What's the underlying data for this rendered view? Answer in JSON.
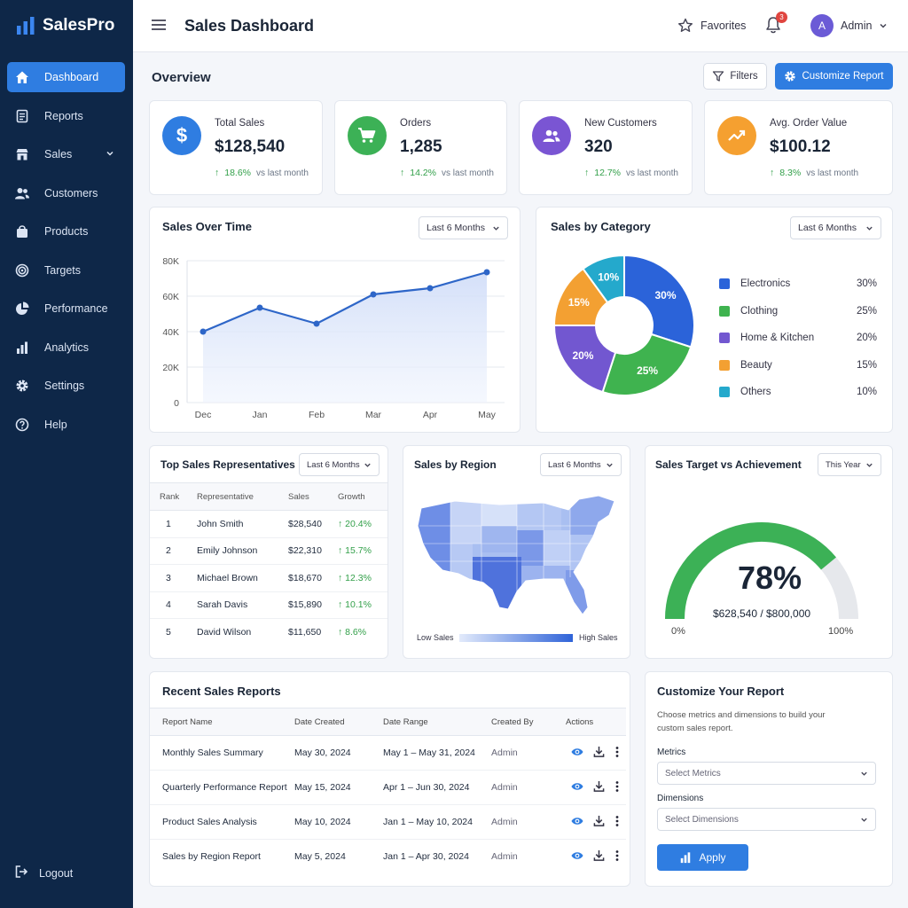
{
  "app": {
    "name": "SalesPro"
  },
  "sidebar": {
    "items": [
      {
        "label": "Dashboard",
        "icon": "home-icon"
      },
      {
        "label": "Reports",
        "icon": "report-icon"
      },
      {
        "label": "Sales",
        "icon": "store-icon"
      },
      {
        "label": "Customers",
        "icon": "users-icon"
      },
      {
        "label": "Products",
        "icon": "bag-icon"
      },
      {
        "label": "Targets",
        "icon": "target-icon"
      },
      {
        "label": "Performance",
        "icon": "pie-icon"
      },
      {
        "label": "Analytics",
        "icon": "bar-chart-icon"
      },
      {
        "label": "Settings",
        "icon": "gear-icon"
      },
      {
        "label": "Help",
        "icon": "help-icon"
      }
    ],
    "logout": "Logout"
  },
  "header": {
    "title": "Sales Dashboard",
    "favorites": "Favorites",
    "notification_count": "3",
    "user_initial": "A",
    "user_name": "Admin"
  },
  "overview": {
    "title": "Overview",
    "filters_label": "Filters",
    "customize_label": "Customize Report"
  },
  "kpis": [
    {
      "label": "Total Sales",
      "value": "$128,540",
      "change": "18.6%",
      "vs": "vs last month",
      "color": "#2f7de1"
    },
    {
      "label": "Orders",
      "value": "1,285",
      "change": "14.2%",
      "vs": "vs last month",
      "color": "#3cb156"
    },
    {
      "label": "New Customers",
      "value": "320",
      "change": "12.7%",
      "vs": "vs last month",
      "color": "#7a55d3"
    },
    {
      "label": "Avg. Order Value",
      "value": "$100.12",
      "change": "8.3%",
      "vs": "vs last month",
      "color": "#f5a030"
    }
  ],
  "sales_over_time": {
    "title": "Sales Over Time",
    "range": "Last 6 Months"
  },
  "sales_by_category": {
    "title": "Sales by Category",
    "range": "Last 6 Months"
  },
  "top_reps": {
    "title": "Top Sales Representatives",
    "range": "Last 6 Months",
    "columns": [
      "Rank",
      "Representative",
      "Sales",
      "Growth"
    ],
    "rows": [
      {
        "rank": "1",
        "name": "John Smith",
        "sales": "$28,540",
        "growth": "20.4%"
      },
      {
        "rank": "2",
        "name": "Emily Johnson",
        "sales": "$22,310",
        "growth": "15.7%"
      },
      {
        "rank": "3",
        "name": "Michael Brown",
        "sales": "$18,670",
        "growth": "12.3%"
      },
      {
        "rank": "4",
        "name": "Sarah Davis",
        "sales": "$15,890",
        "growth": "10.1%"
      },
      {
        "rank": "5",
        "name": "David Wilson",
        "sales": "$11,650",
        "growth": "8.6%"
      }
    ]
  },
  "sales_by_region": {
    "title": "Sales by Region",
    "range": "Last 6 Months",
    "low_label": "Low Sales",
    "high_label": "High Sales"
  },
  "target": {
    "title": "Sales Target vs Achievement",
    "range": "This Year",
    "percent": "78%",
    "value": 0.78,
    "detail": "$628,540 / $800,000",
    "min_label": "0%",
    "max_label": "100%"
  },
  "recent_reports": {
    "title": "Recent Sales Reports",
    "columns": [
      "Report Name",
      "Date Created",
      "Date Range",
      "Created By",
      "Actions"
    ],
    "rows": [
      {
        "name": "Monthly Sales Summary",
        "created": "May 30, 2024",
        "range": "May 1 – May 31, 2024",
        "by": "Admin"
      },
      {
        "name": "Quarterly Performance Report",
        "created": "May 15, 2024",
        "range": "Apr 1 – Jun 30, 2024",
        "by": "Admin"
      },
      {
        "name": "Product Sales Analysis",
        "created": "May 10, 2024",
        "range": "Jan 1 – May 10, 2024",
        "by": "Admin"
      },
      {
        "name": "Sales by Region Report",
        "created": "May 5, 2024",
        "range": "Jan 1 – Apr 30, 2024",
        "by": "Admin"
      }
    ]
  },
  "customize": {
    "title": "Customize Your Report",
    "description": "Choose metrics and dimensions to build your custom sales report.",
    "metrics_label": "Metrics",
    "metrics_placeholder": "Select Metrics",
    "dimensions_label": "Dimensions",
    "dimensions_placeholder": "Select Dimensions",
    "apply_label": "Apply"
  },
  "chart_data": [
    {
      "type": "area",
      "categories": [
        "Dec",
        "Jan",
        "Feb",
        "Mar",
        "Apr",
        "May"
      ],
      "values": [
        40000,
        53500,
        44500,
        61000,
        64500,
        73500
      ],
      "ylim": [
        0,
        80000
      ],
      "yticks": [
        "0",
        "20K",
        "40K",
        "60K",
        "80K"
      ],
      "grid": true,
      "color": "#2e66c8"
    },
    {
      "type": "pie",
      "categories": [
        "Electronics",
        "Clothing",
        "Home & Kitchen",
        "Beauty",
        "Others"
      ],
      "values": [
        30,
        25,
        20,
        15,
        10
      ],
      "labels": [
        "30%",
        "25%",
        "20%",
        "15%",
        "10%"
      ],
      "colors": [
        "#2b63d9",
        "#3fb34f",
        "#7257d0",
        "#f3a032",
        "#24a9cc"
      ],
      "legend": "right"
    }
  ]
}
